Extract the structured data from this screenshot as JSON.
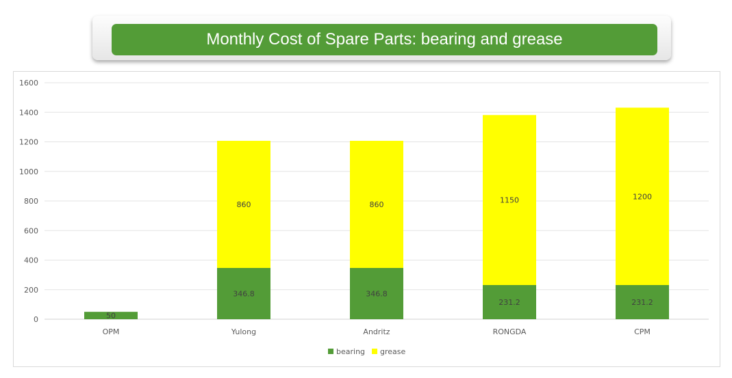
{
  "chart_data": {
    "type": "bar",
    "stacked": true,
    "title": "Monthly  Cost of Spare Parts:  bearing and grease",
    "categories": [
      "OPM",
      "Yulong",
      "Andritz",
      "RONGDA",
      "CPM"
    ],
    "series": [
      {
        "name": "bearing",
        "color": "#539c37",
        "values": [
          50,
          346.8,
          346.8,
          231.2,
          231.2
        ],
        "labels": [
          "50",
          "346.8",
          "346.8",
          "231.2",
          "231.2"
        ]
      },
      {
        "name": "grease",
        "color": "#ffff00",
        "values": [
          0,
          860,
          860,
          1150,
          1200
        ],
        "labels": [
          "",
          "860",
          "860",
          "1150",
          "1200"
        ]
      }
    ],
    "yticks": [
      "0",
      "200",
      "400",
      "600",
      "800",
      "1000",
      "1200",
      "1400",
      "1600"
    ],
    "ylim": [
      0,
      1600
    ],
    "grid": true,
    "legend": "bottom",
    "xlabel": "",
    "ylabel": ""
  }
}
